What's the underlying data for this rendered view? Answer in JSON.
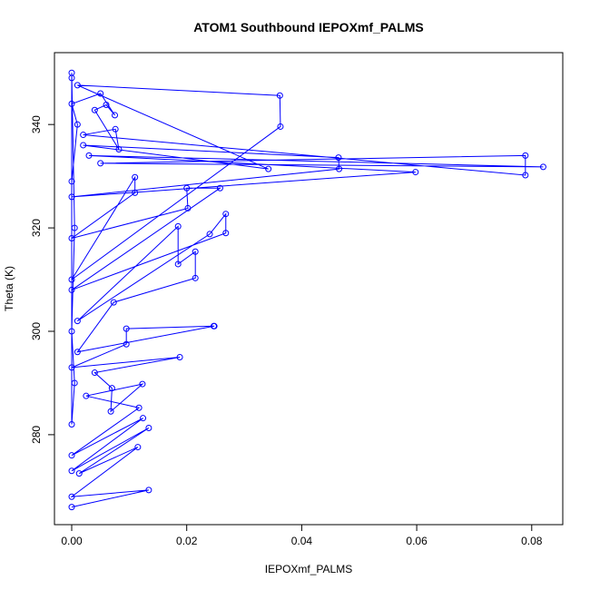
{
  "chart_data": {
    "type": "line",
    "title": "ATOM1 Southbound IEPOXmf_PALMS",
    "x_label": "IEPOXmf_PALMS",
    "y_label": "Theta (K)",
    "xlim": [
      -0.003,
      0.0854
    ],
    "ylim": [
      262.6,
      353.9
    ],
    "xticks": [
      {
        "value": 0,
        "label": "0.00"
      },
      {
        "value": 0.02,
        "label": "0.02"
      },
      {
        "value": 0.04,
        "label": "0.04"
      },
      {
        "value": 0.06,
        "label": "0.06"
      },
      {
        "value": 0.08,
        "label": "0.08"
      }
    ],
    "yticks": [
      280,
      300,
      320,
      340
    ],
    "color": "#0000ff",
    "grid": false,
    "x": [
      0.0,
      0.0134,
      0.0,
      0.0115,
      0.0013,
      0.0134,
      0.0,
      0.0124,
      0.0,
      0.0117,
      0.0025,
      0.0123,
      0.0068,
      0.007,
      0.004,
      0.0188,
      0.0,
      0.0095,
      0.0095,
      0.0247,
      0.0248,
      0.001,
      0.0073,
      0.0215,
      0.0215,
      0.0185,
      0.0185,
      0.001,
      0.024,
      0.0268,
      0.0268,
      0.0,
      0.0258,
      0.02,
      0.0202,
      0.0,
      0.011,
      0.011,
      0.0,
      0.0363,
      0.0362,
      0.001,
      0.0342,
      0.002,
      0.0464,
      0.0465,
      0.0,
      0.0598,
      0.003,
      0.082,
      0.005,
      0.0789,
      0.0789,
      0.002,
      0.0076,
      0.0082,
      0.004,
      0.006,
      0.0075,
      0.005,
      0.0,
      0.001,
      0.0,
      0.0,
      0.0005,
      0.0,
      0.0005,
      0.0,
      0.0
    ],
    "values": [
      266.0,
      269.3,
      268.0,
      277.6,
      272.5,
      281.3,
      273.0,
      283.2,
      276.0,
      285.2,
      287.5,
      289.8,
      284.5,
      289.0,
      292.0,
      295.0,
      293.0,
      297.5,
      300.5,
      301.0,
      301.0,
      296.0,
      305.6,
      310.3,
      315.4,
      313.0,
      320.3,
      302.0,
      318.8,
      322.7,
      319.0,
      308.0,
      327.7,
      327.7,
      323.8,
      318.0,
      326.8,
      329.8,
      310.0,
      339.6,
      345.6,
      347.6,
      331.4,
      336.0,
      333.6,
      331.4,
      326.0,
      330.8,
      334.0,
      331.8,
      332.5,
      334.0,
      330.2,
      338.0,
      339.1,
      335.2,
      342.8,
      343.8,
      341.8,
      346.0,
      344.0,
      340.0,
      329.0,
      350.0,
      320.0,
      300.0,
      290.0,
      282.0,
      349.0
    ]
  }
}
